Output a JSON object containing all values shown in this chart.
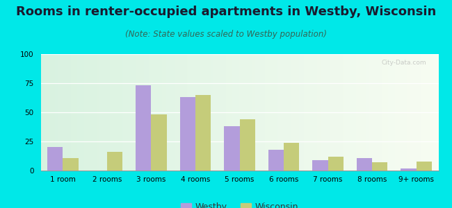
{
  "title": "Rooms in renter-occupied apartments in Westby, Wisconsin",
  "subtitle": "(Note: State values scaled to Westby population)",
  "categories": [
    "1 room",
    "2 rooms",
    "3 rooms",
    "4 rooms",
    "5 rooms",
    "6 rooms",
    "7 rooms",
    "8 rooms",
    "9+ rooms"
  ],
  "westby": [
    20,
    0,
    73,
    63,
    38,
    18,
    9,
    11,
    2
  ],
  "wisconsin": [
    11,
    16,
    48,
    65,
    44,
    24,
    12,
    7,
    8
  ],
  "westby_color": "#b39ddb",
  "wisconsin_color": "#c5cc7a",
  "background_outer": "#00e8e8",
  "ylim": [
    0,
    100
  ],
  "yticks": [
    0,
    25,
    50,
    75,
    100
  ],
  "bar_width": 0.35,
  "title_fontsize": 13,
  "subtitle_fontsize": 8.5,
  "tick_fontsize": 7.5,
  "legend_fontsize": 9
}
